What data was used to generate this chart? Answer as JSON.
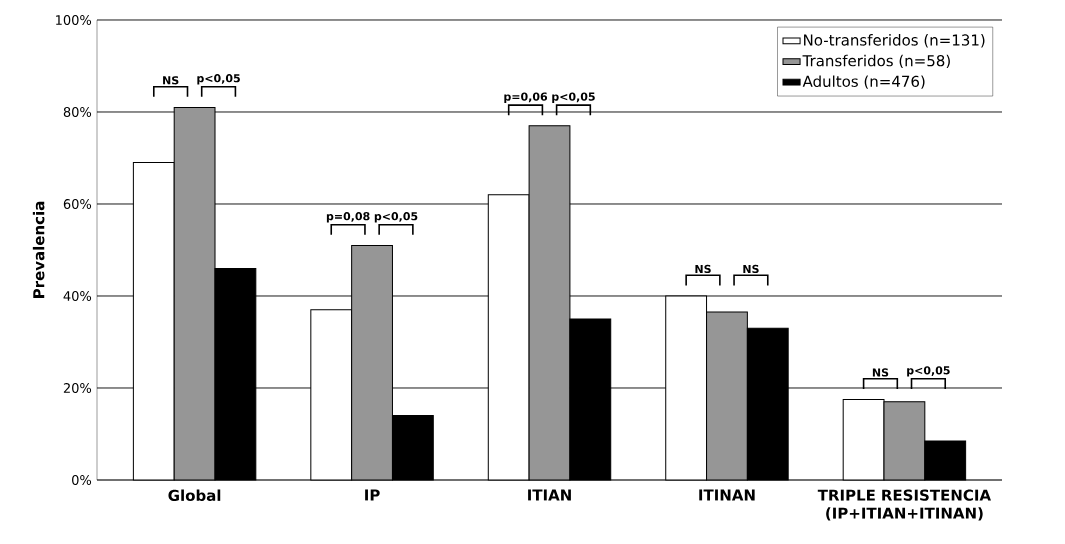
{
  "chart_data": {
    "type": "bar",
    "ylabel": "Prevalencia",
    "categories": [
      "Global",
      "IP",
      "ITIAN",
      "ITINAN",
      "TRIPLE RESISTENCIA (IP+ITIAN+ITINAN)"
    ],
    "series": [
      {
        "name": "No-transferidos (n=131)",
        "color": "#ffffff",
        "values": [
          69,
          37,
          62,
          40,
          17.5
        ]
      },
      {
        "name": "Transferidos (n=58)",
        "color": "#969696",
        "values": [
          81,
          51,
          77,
          36.5,
          17
        ]
      },
      {
        "name": "Adultos (n=476)",
        "color": "#000000",
        "values": [
          46,
          14,
          35,
          33,
          8.5
        ]
      }
    ],
    "ylim": [
      0,
      100
    ],
    "yticks": [
      {
        "value": 0,
        "label": "0%"
      },
      {
        "value": 20,
        "label": "20%"
      },
      {
        "value": 40,
        "label": "40%"
      },
      {
        "value": 60,
        "label": "60%"
      },
      {
        "value": 80,
        "label": "80%"
      },
      {
        "value": 100,
        "label": "100%"
      }
    ],
    "grid": "y",
    "legend": "top right",
    "annotations": [
      "NS",
      "p<0,05",
      "p=0,08",
      "p<0,05",
      "p=0,06",
      "p<0,05",
      "NS",
      "NS",
      "NS",
      "p<0,05"
    ]
  }
}
